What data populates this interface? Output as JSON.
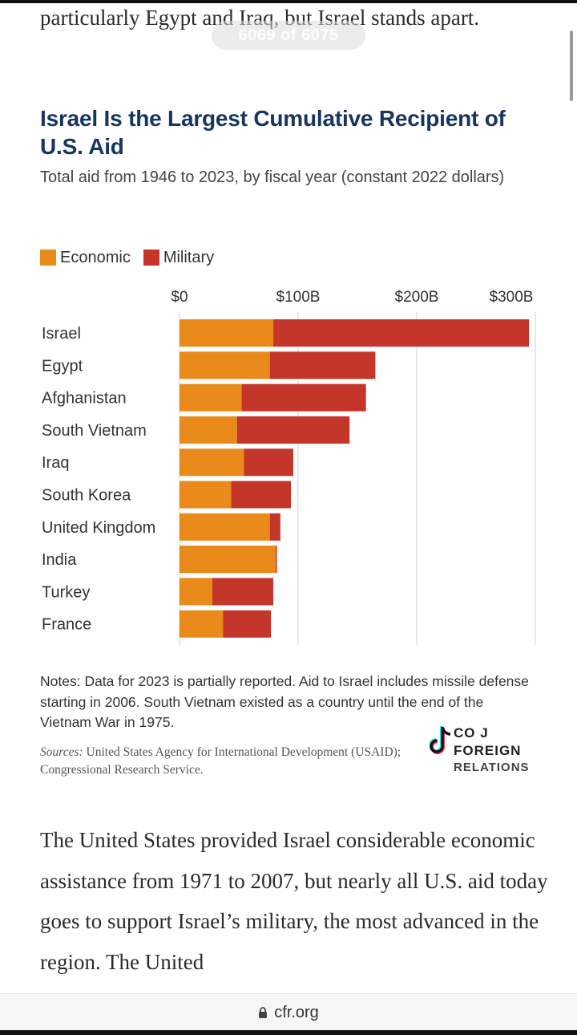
{
  "overlay": {
    "post_counter": "6069 of 6075"
  },
  "article": {
    "intro_text": "particularly Egypt and Iraq, but Israel stands apart.",
    "after_text": "The United States provided Israel considerable economic assistance from 1971 to 2007, but nearly all U.S. aid today goes to support Israel’s military, the most advanced in the region. The United"
  },
  "chart_data": {
    "type": "bar",
    "orientation": "horizontal",
    "stacked": true,
    "title": "Israel Is the Largest Cumulative Recipient of U.S. Aid",
    "subtitle": "Total aid from 1946 to 2023, by fiscal year (constant 2022 dollars)",
    "x_tick_labels": [
      "$0",
      "$100B",
      "$200B",
      "$300B"
    ],
    "x_ticks": [
      0,
      100,
      200,
      300
    ],
    "xlim": [
      0,
      300
    ],
    "grid": true,
    "legend_position": "top-left",
    "categories": [
      "Israel",
      "Egypt",
      "Afghanistan",
      "South Vietnam",
      "Iraq",
      "South Korea",
      "United Kingdom",
      "India",
      "Turkey",
      "France"
    ],
    "series": [
      {
        "name": "Economic",
        "color": "#e98a1a",
        "values": [
          80,
          77,
          53,
          49,
          55,
          44,
          77,
          82,
          28,
          37
        ]
      },
      {
        "name": "Military",
        "color": "#c4362a",
        "values": [
          218,
          90,
          106,
          96,
          42,
          51,
          9,
          1,
          52,
          41
        ]
      }
    ],
    "notes": "Notes: Data for 2023 is partially reported. Aid to Israel includes missile defense starting in 2006. South Vietnam existed as a country until the end of the Vietnam War in 1975.",
    "sources_label": "Sources:",
    "sources_text": "United States Agency for International Development (USAID); Congressional Research Service."
  },
  "watermark": {
    "line1": "CO J",
    "line2": "FOREIGN",
    "line3": "RELATIONS"
  },
  "browser": {
    "url": "cfr.org",
    "lock_icon": "lock-icon"
  },
  "colors": {
    "title": "#163560",
    "economic": "#e98a1a",
    "military": "#c4362a"
  }
}
